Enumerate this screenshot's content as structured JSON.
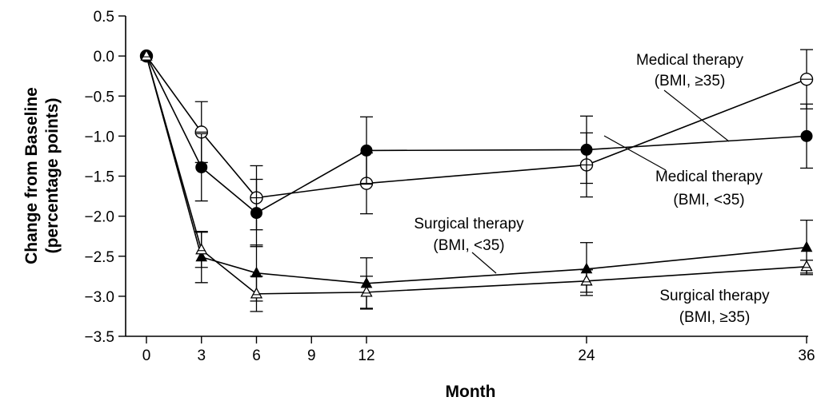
{
  "chart_data": {
    "type": "line",
    "xlabel": "Month",
    "ylabel": [
      "Change from Baseline",
      "(percentage points)"
    ],
    "xticks": [
      0,
      3,
      6,
      9,
      12,
      24,
      36
    ],
    "xlim": [
      -2,
      36
    ],
    "ylim": [
      -3.5,
      0.5
    ],
    "yticks": [
      0.5,
      0.0,
      -0.5,
      -1.0,
      -1.5,
      -2.0,
      -2.5,
      -3.0,
      -3.5
    ],
    "ytick_labels": [
      "0.5",
      "0.0",
      "−0.5",
      "−1.0",
      "−1.5",
      "−2.0",
      "−2.5",
      "−3.0",
      "−3.5"
    ],
    "grid": false,
    "series": [
      {
        "label": [
          "Medical therapy",
          "(BMI, ≥35)"
        ],
        "marker": "circle-open",
        "x": [
          0,
          3,
          6,
          12,
          24,
          36
        ],
        "y": [
          0.0,
          -0.95,
          -1.77,
          -1.59,
          -1.36,
          -0.29
        ],
        "err": [
          0,
          0.38,
          0.4,
          0.38,
          0.4,
          0.37
        ]
      },
      {
        "label": [
          "Medical therapy",
          "(BMI, <35)"
        ],
        "marker": "circle-filled",
        "x": [
          0,
          3,
          6,
          12,
          24,
          36
        ],
        "y": [
          0.0,
          -1.39,
          -1.96,
          -1.18,
          -1.17,
          -1.0
        ],
        "err": [
          0,
          0.42,
          0.42,
          0.42,
          0.42,
          0.4
        ]
      },
      {
        "label": [
          "Surgical therapy",
          "(BMI, <35)"
        ],
        "marker": "triangle-filled",
        "x": [
          0,
          3,
          6,
          12,
          24,
          36
        ],
        "y": [
          0.0,
          -2.51,
          -2.71,
          -2.84,
          -2.66,
          -2.39
        ],
        "err": [
          0,
          0.32,
          0.35,
          0.32,
          0.33,
          0.34
        ]
      },
      {
        "label": [
          "Surgical therapy",
          "(BMI, ≥35)"
        ],
        "marker": "triangle-open",
        "x": [
          0,
          3,
          6,
          12,
          24,
          36
        ],
        "y": [
          0.0,
          -2.42,
          -2.97,
          -2.95,
          -2.81,
          -2.63
        ],
        "err": [
          0,
          0.22,
          0.22,
          0.2,
          0.14,
          0.08
        ]
      }
    ]
  }
}
